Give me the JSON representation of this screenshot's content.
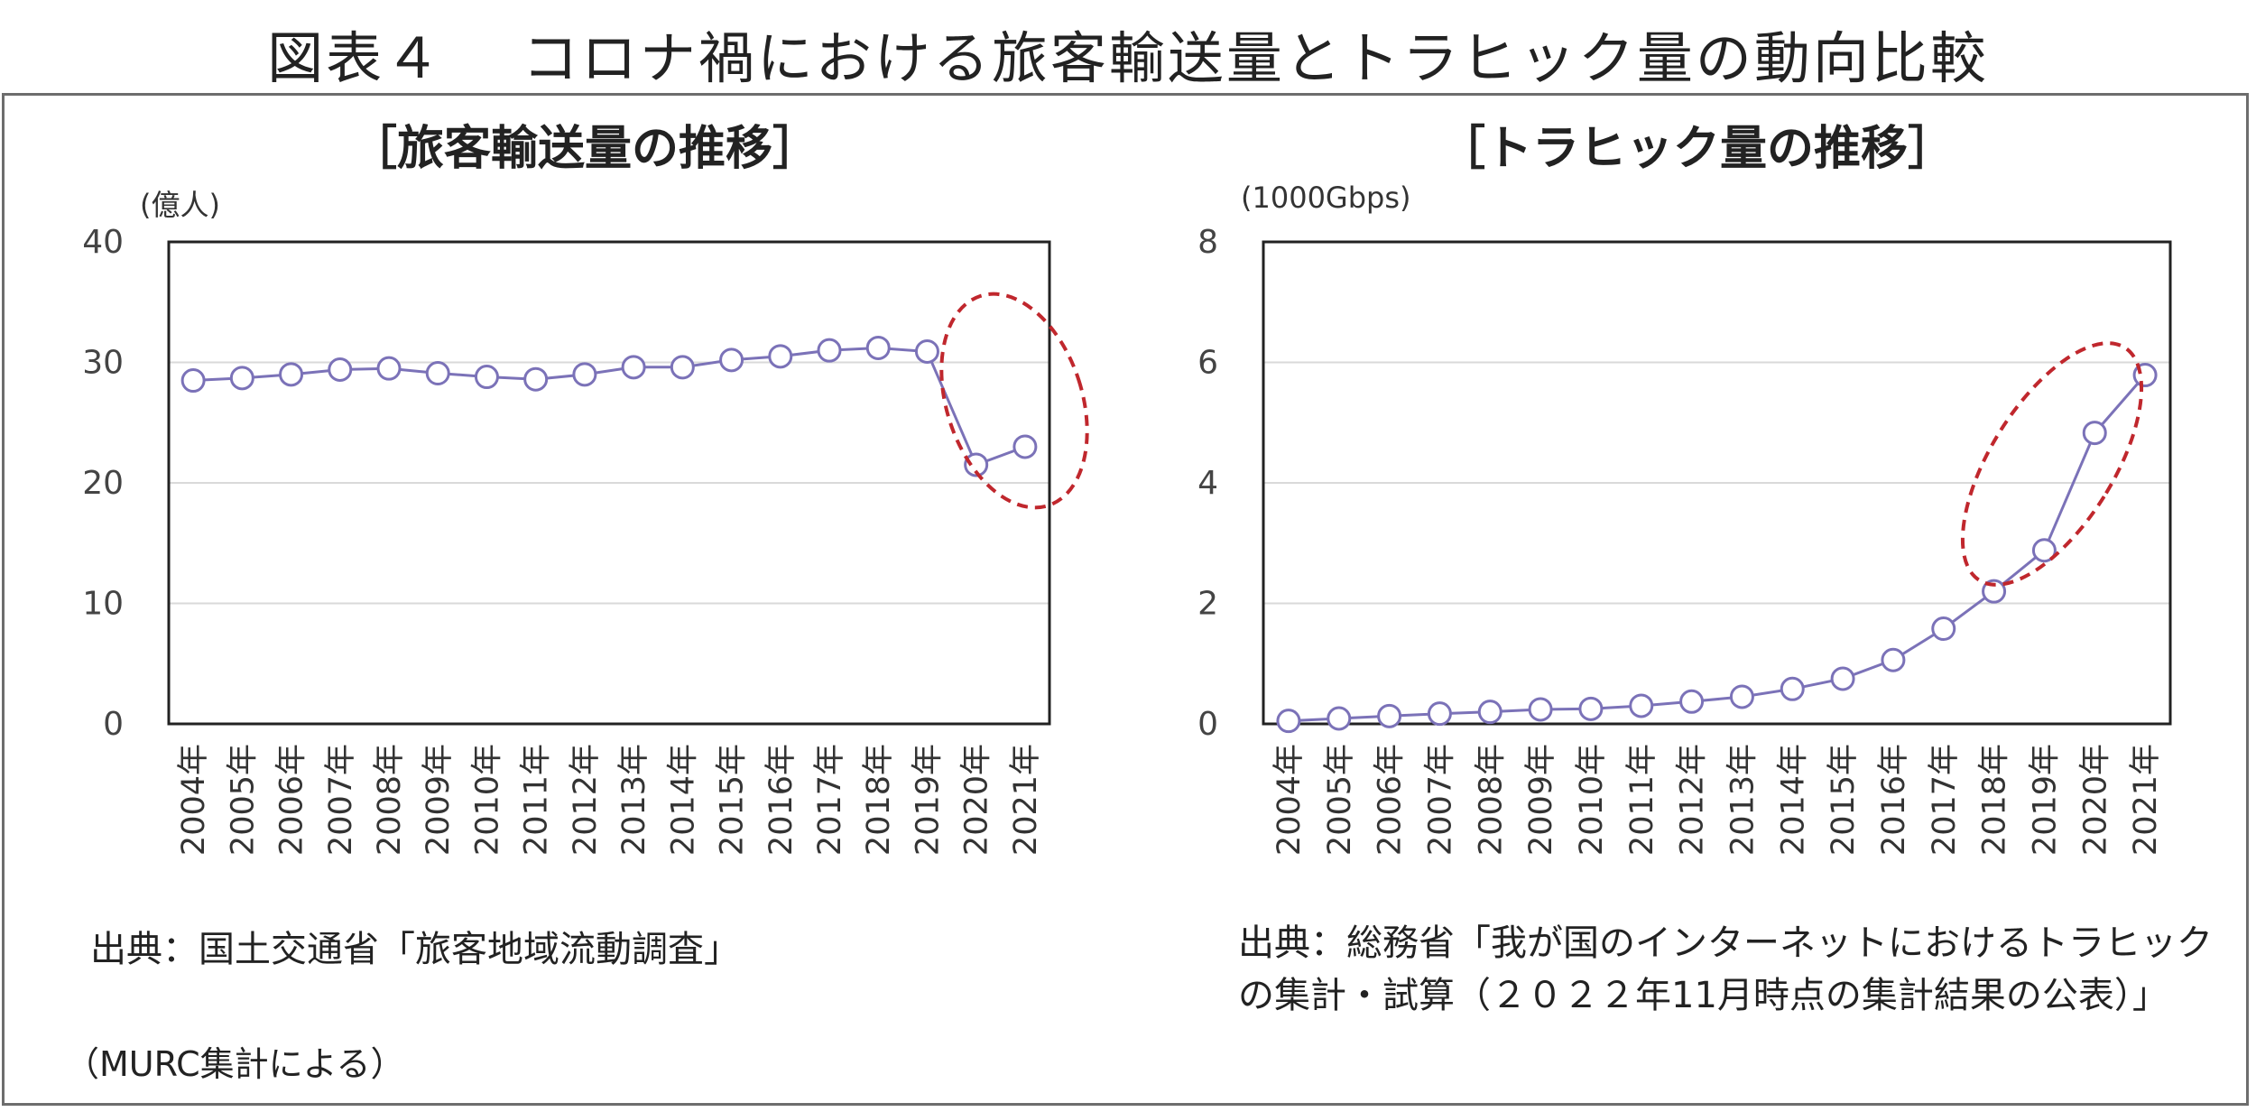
{
  "figure": {
    "title": "図表４　 コロナ禍における旅客輸送量とトラヒック量の動向比較",
    "note": "（MURC集計による）"
  },
  "colors": {
    "series": "#7b72b8",
    "highlight": "#c0272d",
    "grid": "#d9d9d9",
    "axis": "#222222"
  },
  "chart_data": [
    {
      "type": "line",
      "title": "［旅客輸送量の推移］",
      "unit_label": "(億人)",
      "source": "出典：国土交通省「旅客地域流動調査」",
      "x": [
        "2004年",
        "2005年",
        "2006年",
        "2007年",
        "2008年",
        "2009年",
        "2010年",
        "2011年",
        "2012年",
        "2013年",
        "2014年",
        "2015年",
        "2016年",
        "2017年",
        "2018年",
        "2019年",
        "2020年",
        "2021年"
      ],
      "series": [
        {
          "values": [
            28.5,
            28.7,
            29.0,
            29.4,
            29.5,
            29.1,
            28.8,
            28.6,
            29.0,
            29.6,
            29.6,
            30.2,
            30.5,
            31.0,
            31.2,
            30.9,
            21.5,
            23.0
          ]
        }
      ],
      "ylim": [
        0,
        40
      ],
      "yticks": [
        "0",
        "10",
        "20",
        "30",
        "40"
      ],
      "grid": true,
      "highlight": "red dashed ellipse around 2019年–2021年"
    },
    {
      "type": "line",
      "title": "［トラヒック量の推移］",
      "unit_label": "(1000Gbps)",
      "source": "出典：総務省「我が国のインターネットにおけるトラヒックの集計・試算（２０２２年11月時点の集計結果の公表）」",
      "source_lines": [
        "出典：総務省「我が国のインターネットにおけるトラヒック",
        "の集計・試算（２０２２年11月時点の集計結果の公表）」"
      ],
      "x": [
        "2004年",
        "2005年",
        "2006年",
        "2007年",
        "2008年",
        "2009年",
        "2010年",
        "2011年",
        "2012年",
        "2013年",
        "2014年",
        "2015年",
        "2016年",
        "2017年",
        "2018年",
        "2019年",
        "2020年",
        "2021年"
      ],
      "series": [
        {
          "values": [
            0.05,
            0.09,
            0.13,
            0.17,
            0.2,
            0.24,
            0.25,
            0.3,
            0.37,
            0.45,
            0.58,
            0.75,
            1.06,
            1.58,
            2.2,
            2.88,
            4.83,
            5.79
          ]
        }
      ],
      "ylim": [
        0,
        8
      ],
      "yticks": [
        "0",
        "2",
        "4",
        "6",
        "8"
      ],
      "grid": true,
      "highlight": "red dashed ellipse around 2019年–2021年"
    }
  ]
}
